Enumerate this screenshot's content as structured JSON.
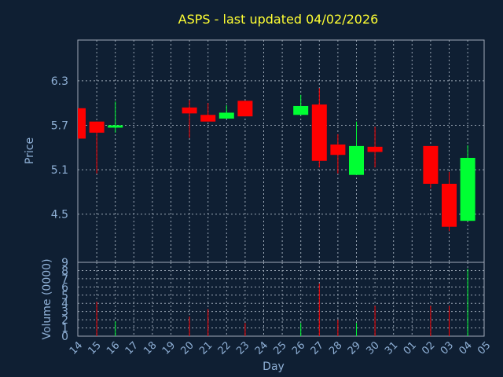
{
  "chart_data": [
    {
      "type": "candlestick",
      "title": "ASPS - last updated 04/02/2026",
      "ylabel": "Price",
      "xlabel": "",
      "ylim": [
        3.85,
        6.85
      ],
      "yticks": [
        4.5,
        5.1,
        5.7,
        6.3
      ],
      "ytick_labels": [
        "4.5",
        "5.1",
        "5.7",
        "6.3"
      ],
      "grid": true,
      "colors": {
        "up": "#00ff33",
        "down": "#ff0000"
      },
      "candles": [
        {
          "day": "14",
          "open": 5.93,
          "high": 5.93,
          "low": 5.52,
          "close": 5.52
        },
        {
          "day": "15",
          "open": 5.75,
          "high": 5.75,
          "low": 5.05,
          "close": 5.6
        },
        {
          "day": "16",
          "open": 5.67,
          "high": 6.02,
          "low": 5.6,
          "close": 5.7
        },
        {
          "day": "20",
          "open": 5.94,
          "high": 6.04,
          "low": 5.53,
          "close": 5.86
        },
        {
          "day": "21",
          "open": 5.84,
          "high": 6.0,
          "low": 5.75,
          "close": 5.75
        },
        {
          "day": "22",
          "open": 5.79,
          "high": 5.97,
          "low": 5.79,
          "close": 5.87
        },
        {
          "day": "23",
          "open": 6.03,
          "high": 6.03,
          "low": 5.82,
          "close": 5.82
        },
        {
          "day": "26",
          "open": 5.84,
          "high": 6.11,
          "low": 5.84,
          "close": 5.96
        },
        {
          "day": "27",
          "open": 5.98,
          "high": 6.2,
          "low": 5.13,
          "close": 5.22
        },
        {
          "day": "28",
          "open": 5.44,
          "high": 5.58,
          "low": 5.05,
          "close": 5.3
        },
        {
          "day": "29",
          "open": 5.03,
          "high": 5.75,
          "low": 5.03,
          "close": 5.42
        },
        {
          "day": "30",
          "open": 5.41,
          "high": 5.68,
          "low": 5.13,
          "close": 5.34
        },
        {
          "day": "02",
          "open": 5.42,
          "high": 5.42,
          "low": 4.85,
          "close": 4.91
        },
        {
          "day": "03",
          "open": 4.91,
          "high": 5.07,
          "low": 4.27,
          "close": 4.33
        },
        {
          "day": "04",
          "open": 4.41,
          "high": 5.43,
          "low": 4.41,
          "close": 5.26
        }
      ]
    },
    {
      "type": "bar",
      "ylabel": "Volume (0000)",
      "xlabel": "Day",
      "ylim": [
        0,
        9
      ],
      "yticks": [
        0,
        1,
        2,
        3,
        4,
        5,
        6,
        7,
        8,
        9
      ],
      "ytick_labels": [
        "0",
        "1",
        "2",
        "3",
        "4",
        "5",
        "6",
        "7",
        "8",
        "9"
      ],
      "categories": [
        "14",
        "15",
        "16",
        "17",
        "18",
        "19",
        "20",
        "21",
        "22",
        "23",
        "24",
        "25",
        "26",
        "27",
        "28",
        "29",
        "30",
        "31",
        "01",
        "02",
        "03",
        "04",
        "05"
      ],
      "values": [
        null,
        4.2,
        1.8,
        null,
        null,
        null,
        2.4,
        3.3,
        null,
        1.6,
        null,
        null,
        1.6,
        6.4,
        2.0,
        1.6,
        3.7,
        null,
        null,
        3.7,
        3.7,
        8.2,
        null
      ],
      "bar_colors": [
        null,
        "#ff0000",
        "#00ff33",
        null,
        null,
        null,
        "#ff0000",
        "#ff0000",
        null,
        "#ff0000",
        null,
        null,
        "#00ff33",
        "#ff0000",
        "#ff0000",
        "#00ff33",
        "#ff0000",
        null,
        null,
        "#ff0000",
        "#ff0000",
        "#00ff33",
        null
      ]
    }
  ]
}
